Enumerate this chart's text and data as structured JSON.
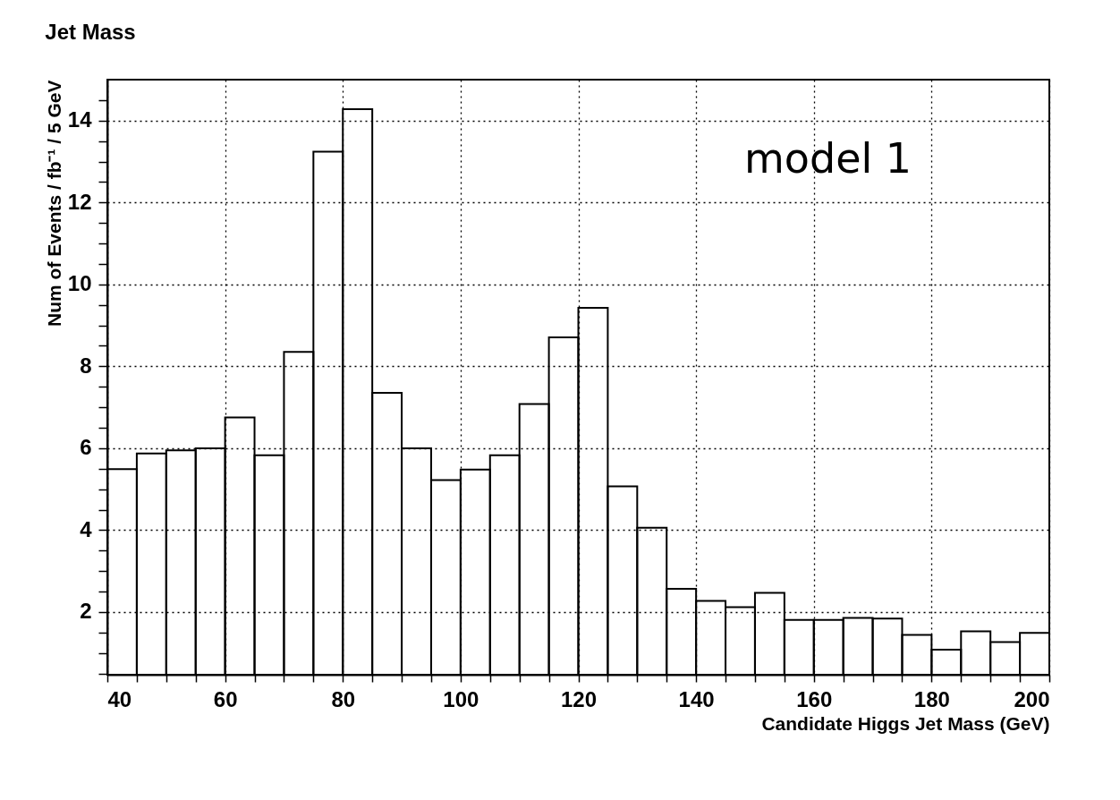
{
  "chart_data": {
    "type": "histogram",
    "title": "Jet Mass",
    "xlabel": "Candidate Higgs Jet Mass (GeV)",
    "ylabel": "Num of Events / fb⁻¹ / 5 GeV",
    "annotations": [
      "model 1"
    ],
    "bins": [
      40,
      45,
      50,
      55,
      60,
      65,
      70,
      75,
      80,
      85,
      90,
      95,
      100,
      105,
      110,
      115,
      120,
      125,
      130,
      135,
      140,
      145,
      150,
      155,
      160,
      165,
      170,
      175,
      180,
      185,
      190,
      195,
      200
    ],
    "values": [
      5.49,
      5.87,
      5.95,
      6.0,
      6.75,
      5.83,
      8.35,
      13.24,
      14.28,
      7.35,
      6.0,
      5.22,
      5.48,
      5.83,
      7.08,
      8.71,
      9.43,
      5.07,
      4.06,
      2.57,
      2.27,
      2.12,
      2.47,
      1.81,
      1.81,
      1.86,
      1.84,
      1.44,
      1.08,
      1.53,
      1.27,
      1.49
    ],
    "color": "#000000",
    "xlim": [
      40,
      200
    ],
    "ylim": [
      0.47,
      15
    ],
    "xticks": [
      40,
      {
        "value": 45,
        "label": null
      },
      {
        "value": 50,
        "label": null
      },
      {
        "value": 55,
        "label": null
      },
      60,
      {
        "value": 65,
        "label": null
      },
      {
        "value": 70,
        "label": null
      },
      {
        "value": 75,
        "label": null
      },
      80,
      {
        "value": 85,
        "label": null
      },
      {
        "value": 90,
        "label": null
      },
      {
        "value": 95,
        "label": null
      },
      100,
      {
        "value": 105,
        "label": null
      },
      {
        "value": 110,
        "label": null
      },
      {
        "value": 115,
        "label": null
      },
      120,
      {
        "value": 125,
        "label": null
      },
      {
        "value": 130,
        "label": null
      },
      {
        "value": 135,
        "label": null
      },
      140,
      {
        "value": 145,
        "label": null
      },
      {
        "value": 150,
        "label": null
      },
      {
        "value": 155,
        "label": null
      },
      160,
      {
        "value": 165,
        "label": null
      },
      {
        "value": 170,
        "label": null
      },
      {
        "value": 175,
        "label": null
      },
      180,
      {
        "value": 185,
        "label": null
      },
      {
        "value": 190,
        "label": null
      },
      {
        "value": 195,
        "label": null
      },
      200
    ],
    "yticks": [
      {
        "value": 0.5,
        "label": null
      },
      {
        "value": 1,
        "label": null
      },
      {
        "value": 1.5,
        "label": null
      },
      2,
      {
        "value": 2.5,
        "label": null
      },
      {
        "value": 3,
        "label": null
      },
      {
        "value": 3.5,
        "label": null
      },
      4,
      {
        "value": 4.5,
        "label": null
      },
      {
        "value": 5,
        "label": null
      },
      {
        "value": 5.5,
        "label": null
      },
      6,
      {
        "value": 6.5,
        "label": null
      },
      {
        "value": 7,
        "label": null
      },
      {
        "value": 7.5,
        "label": null
      },
      8,
      {
        "value": 8.5,
        "label": null
      },
      {
        "value": 9,
        "label": null
      },
      {
        "value": 9.5,
        "label": null
      },
      10,
      {
        "value": 10.5,
        "label": null
      },
      {
        "value": 11,
        "label": null
      },
      {
        "value": 11.5,
        "label": null
      },
      12,
      {
        "value": 12.5,
        "label": null
      },
      {
        "value": 13,
        "label": null
      },
      {
        "value": 13.5,
        "label": null
      },
      14,
      {
        "value": 14.5,
        "label": null
      }
    ],
    "grid": true
  }
}
